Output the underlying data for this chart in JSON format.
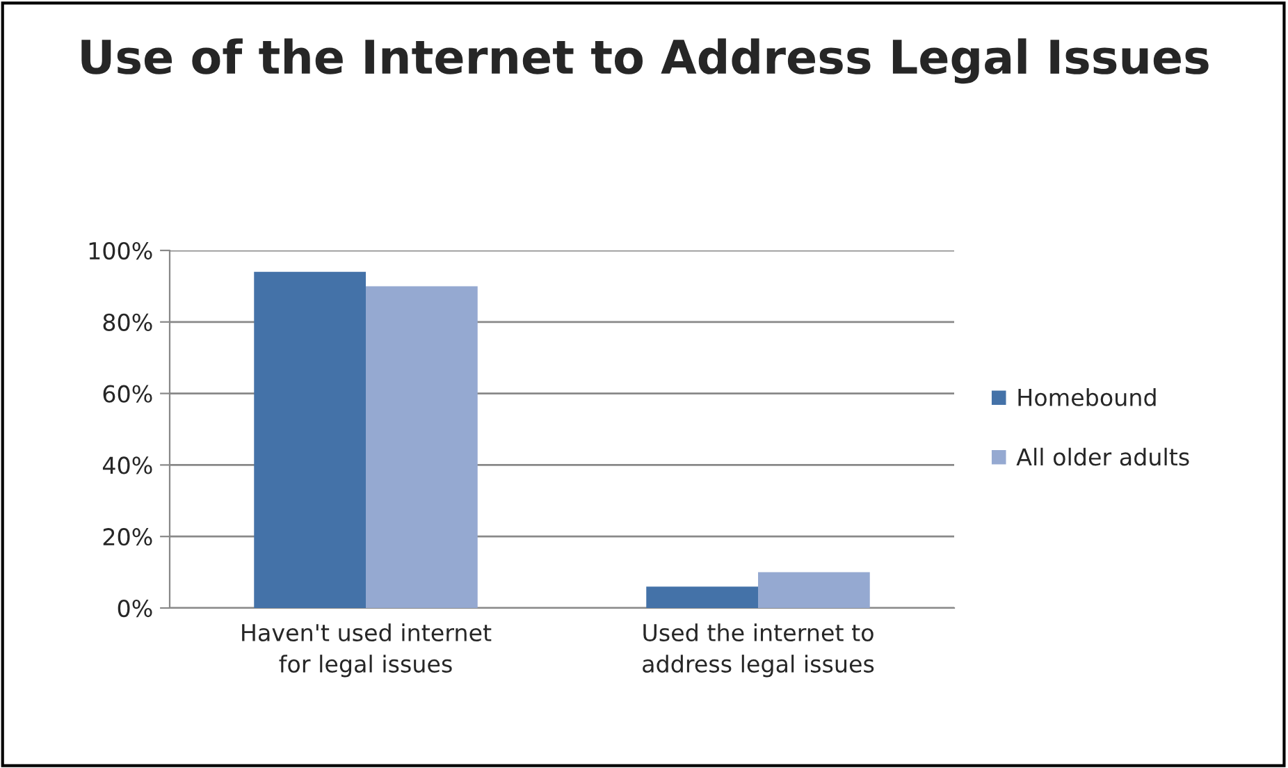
{
  "chart_data": {
    "type": "bar",
    "title": "Use of the Internet to Address Legal Issues",
    "categories": [
      "Haven't used internet for legal issues",
      "Used the internet to address legal issues"
    ],
    "series": [
      {
        "name": "Homebound",
        "color": "#4472a8",
        "values": [
          94,
          6
        ]
      },
      {
        "name": "All older adults",
        "color": "#95a9d1",
        "values": [
          90,
          10
        ]
      }
    ],
    "ylim": [
      0,
      100
    ],
    "yticks": [
      {
        "value": 0,
        "label": "0%"
      },
      {
        "value": 20,
        "label": "20%"
      },
      {
        "value": 40,
        "label": "40%"
      },
      {
        "value": 60,
        "label": "60%"
      },
      {
        "value": 80,
        "label": "80%"
      },
      {
        "value": 100,
        "label": "100%"
      }
    ],
    "grid": "y",
    "legend": "right"
  }
}
